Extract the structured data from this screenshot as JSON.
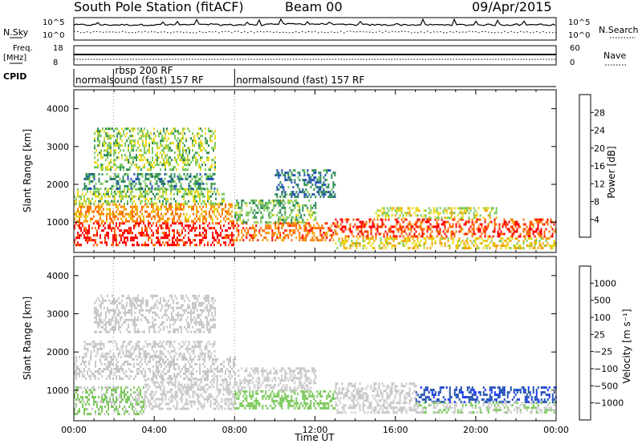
{
  "header": {
    "title": "South Pole Station (fitACF)",
    "beam": "Beam 00",
    "date": "09/Apr/2015"
  },
  "top_panels": {
    "nsky": {
      "label": "N.Sky",
      "ticks_left": [
        "10^5",
        "10^0"
      ]
    },
    "nsearch": {
      "label": "N.Search",
      "ticks_right": [
        "10^5",
        "10^0"
      ]
    },
    "freq": {
      "label_line1": "Freq.",
      "label_line2": "[MHz]",
      "ticks_left": [
        "18",
        "8"
      ]
    },
    "nave": {
      "label": "Nave",
      "ticks_right": [
        "60",
        "0"
      ]
    },
    "cpid": {
      "label": "CPID",
      "segments": [
        {
          "label": "normalsound (fast) 157 RF",
          "start_hour": 0
        },
        {
          "label": "rbsp 200 RF",
          "start_hour": 1.97
        },
        {
          "label": "normalsound (fast) 157 RF",
          "start_hour": 8.0
        }
      ]
    }
  },
  "colors": {
    "power_scale": [
      "#1030ff",
      "#2050b0",
      "#2e8b57",
      "#7ac95a",
      "#e8d818",
      "#f5a200",
      "#ff6a00",
      "#ff0000"
    ],
    "velocity_scale": [
      "#ff0000",
      "#ff6a00",
      "#f5a200",
      "#c8c8c8",
      "#c8c8c8",
      "#7ac95a",
      "#2e8b57",
      "#2050b0",
      "#1030ff"
    ]
  },
  "chart_data": [
    {
      "type": "heatmap",
      "panel": "power",
      "ylabel": "Slant Range [km]",
      "xlim": [
        0,
        24
      ],
      "ylim": [
        200,
        4500
      ],
      "yticks": [
        "1000",
        "2000",
        "3000",
        "4000"
      ],
      "colorbar": {
        "label": "Power [dB]",
        "ticks": [
          "4",
          "8",
          "12",
          "16",
          "20",
          "24",
          "28"
        ],
        "range": [
          0,
          30
        ]
      },
      "bands": [
        {
          "t0": 0.0,
          "t1": 8.0,
          "r0": 400,
          "r1": 1000,
          "value": 28
        },
        {
          "t0": 0.0,
          "t1": 8.0,
          "r0": 1000,
          "r1": 1500,
          "value": 22
        },
        {
          "t0": 0.0,
          "t1": 7.5,
          "r0": 1500,
          "r1": 1900,
          "value": 14
        },
        {
          "t0": 0.5,
          "t1": 7.0,
          "r0": 1900,
          "r1": 2300,
          "value": 10
        },
        {
          "t0": 1.0,
          "t1": 7.0,
          "r0": 2400,
          "r1": 3500,
          "value": 14
        },
        {
          "t0": 8.0,
          "t1": 13.0,
          "r0": 500,
          "r1": 1000,
          "value": 24
        },
        {
          "t0": 8.0,
          "t1": 12.0,
          "r0": 1000,
          "r1": 1600,
          "value": 12
        },
        {
          "t0": 10.0,
          "t1": 13.0,
          "r0": 1700,
          "r1": 2400,
          "value": 8
        },
        {
          "t0": 13.0,
          "t1": 24.0,
          "r0": 600,
          "r1": 1100,
          "value": 26
        },
        {
          "t0": 13.0,
          "t1": 24.0,
          "r0": 300,
          "r1": 600,
          "value": 18
        },
        {
          "t0": 15.0,
          "t1": 21.0,
          "r0": 1100,
          "r1": 1400,
          "value": 16
        }
      ]
    },
    {
      "type": "heatmap",
      "panel": "velocity",
      "ylabel": "Slant Range [km]",
      "xlabel": "Time UT",
      "xlim": [
        0,
        24
      ],
      "ylim": [
        200,
        4500
      ],
      "yticks": [
        "1000",
        "2000",
        "3000",
        "4000"
      ],
      "xticks": [
        "00:00",
        "04:00",
        "08:00",
        "12:00",
        "16:00",
        "20:00",
        "00:00"
      ],
      "colorbar": {
        "label": "Velocity [m s⁻¹]",
        "ticks": [
          "1000",
          "500",
          "100",
          "25",
          "−25",
          "−100",
          "−500",
          "−1000"
        ],
        "range": [
          -1200,
          1200
        ]
      },
      "bands": [
        {
          "t0": 0.0,
          "t1": 3.5,
          "r0": 400,
          "r1": 1100,
          "value": 150
        },
        {
          "t0": 3.5,
          "t1": 8.0,
          "r0": 500,
          "r1": 1300,
          "value": -120
        },
        {
          "t0": 0.0,
          "t1": 8.0,
          "r0": 1300,
          "r1": 1900,
          "value": 0
        },
        {
          "t0": 0.5,
          "t1": 7.0,
          "r0": 1900,
          "r1": 2300,
          "value": 0
        },
        {
          "t0": 1.0,
          "t1": 7.0,
          "r0": 2500,
          "r1": 3500,
          "value": -80
        },
        {
          "t0": 8.0,
          "t1": 13.0,
          "r0": 500,
          "r1": 1000,
          "value": 200
        },
        {
          "t0": 8.0,
          "t1": 12.0,
          "r0": 1000,
          "r1": 1600,
          "value": -150
        },
        {
          "t0": 13.0,
          "t1": 17.0,
          "r0": 400,
          "r1": 1200,
          "value": -300
        },
        {
          "t0": 17.0,
          "t1": 24.0,
          "r0": 700,
          "r1": 1100,
          "value": 900
        },
        {
          "t0": 17.0,
          "t1": 24.0,
          "r0": 400,
          "r1": 700,
          "value": 120
        }
      ]
    }
  ]
}
